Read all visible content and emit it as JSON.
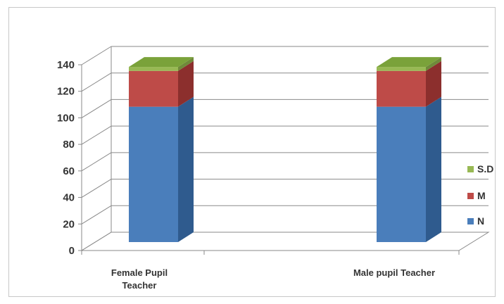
{
  "chart_data": {
    "type": "bar",
    "stacked": true,
    "three_d": true,
    "categories": [
      [
        "Female Pupil",
        "Teacher"
      ],
      [
        "Male pupil Teacher"
      ]
    ],
    "series": [
      {
        "name": "N",
        "values": [
          102,
          102
        ],
        "color": "#4a7ebb",
        "side": "#2f5b8e",
        "top": "#7aa3d6"
      },
      {
        "name": "M",
        "values": [
          27,
          27
        ],
        "color": "#be4b48",
        "side": "#8c2f2d",
        "top": "#d67a77"
      },
      {
        "name": "S.D",
        "values": [
          3,
          3
        ],
        "color": "#98b954",
        "side": "#6f8a3a",
        "top": "#7aa23a"
      }
    ],
    "ylim": [
      0,
      140
    ],
    "yticks": [
      "0",
      "20",
      "40",
      "60",
      "80",
      "100",
      "120",
      "140"
    ],
    "grid": true,
    "legend_position": "right",
    "legend_order": [
      "S.D",
      "M",
      "N"
    ]
  }
}
